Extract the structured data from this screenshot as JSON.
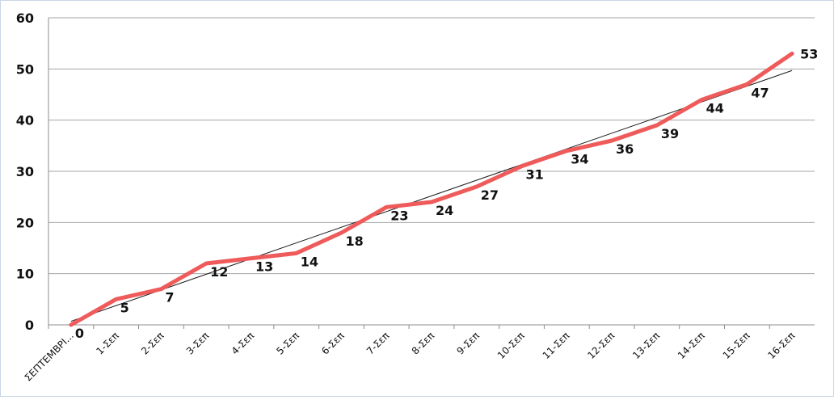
{
  "chart_data": {
    "type": "line",
    "title": "",
    "xlabel": "",
    "ylabel": "",
    "ylim": [
      0,
      60
    ],
    "yticks": [
      0,
      10,
      20,
      30,
      40,
      50,
      60
    ],
    "grid": true,
    "legend": "none",
    "categories": [
      "ΣΕΠΤΕΜΒΡΙ...",
      "1-Σεπ",
      "2-Σεπ",
      "3-Σεπ",
      "4-Σεπ",
      "5-Σεπ",
      "6-Σεπ",
      "7-Σεπ",
      "8-Σεπ",
      "9-Σεπ",
      "10-Σεπ",
      "11-Σεπ",
      "12-Σεπ",
      "13-Σεπ",
      "14-Σεπ",
      "15-Σεπ",
      "16-Σεπ"
    ],
    "series": [
      {
        "values": [
          0,
          5,
          7,
          12,
          13,
          14,
          18,
          23,
          24,
          27,
          31,
          34,
          36,
          39,
          44,
          47,
          53
        ],
        "color": "#ef5a5a",
        "data_labels": true
      }
    ],
    "trendline": {
      "type": "linear",
      "color": "#1a1a1a",
      "start": 0.7,
      "end": 49.7
    }
  }
}
